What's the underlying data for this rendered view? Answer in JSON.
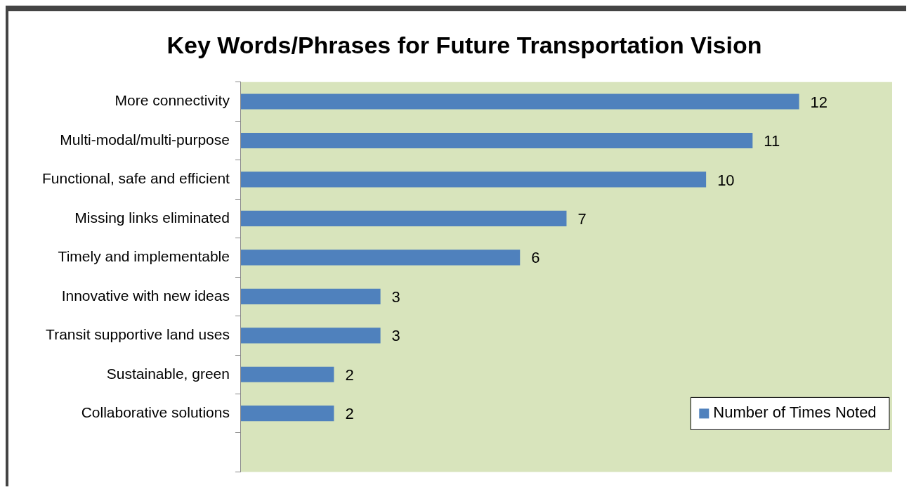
{
  "chart_data": {
    "type": "bar",
    "orientation": "horizontal",
    "title": "Key Words/Phrases for Future Transportation Vision",
    "categories": [
      "More connectivity",
      "Multi-modal/multi-purpose",
      "Functional, safe and efficient",
      "Missing links eliminated",
      "Timely and implementable",
      "Innovative with new ideas",
      "Transit supportive land uses",
      "Sustainable, green",
      "Collaborative solutions",
      null
    ],
    "series": [
      {
        "name": "Number of Times Noted",
        "color": "#4f81bd",
        "values": [
          12,
          11,
          10,
          7,
          6,
          3,
          3,
          2,
          2,
          null
        ]
      }
    ],
    "data_labels": true,
    "legend": "bottom right",
    "grid": false
  }
}
